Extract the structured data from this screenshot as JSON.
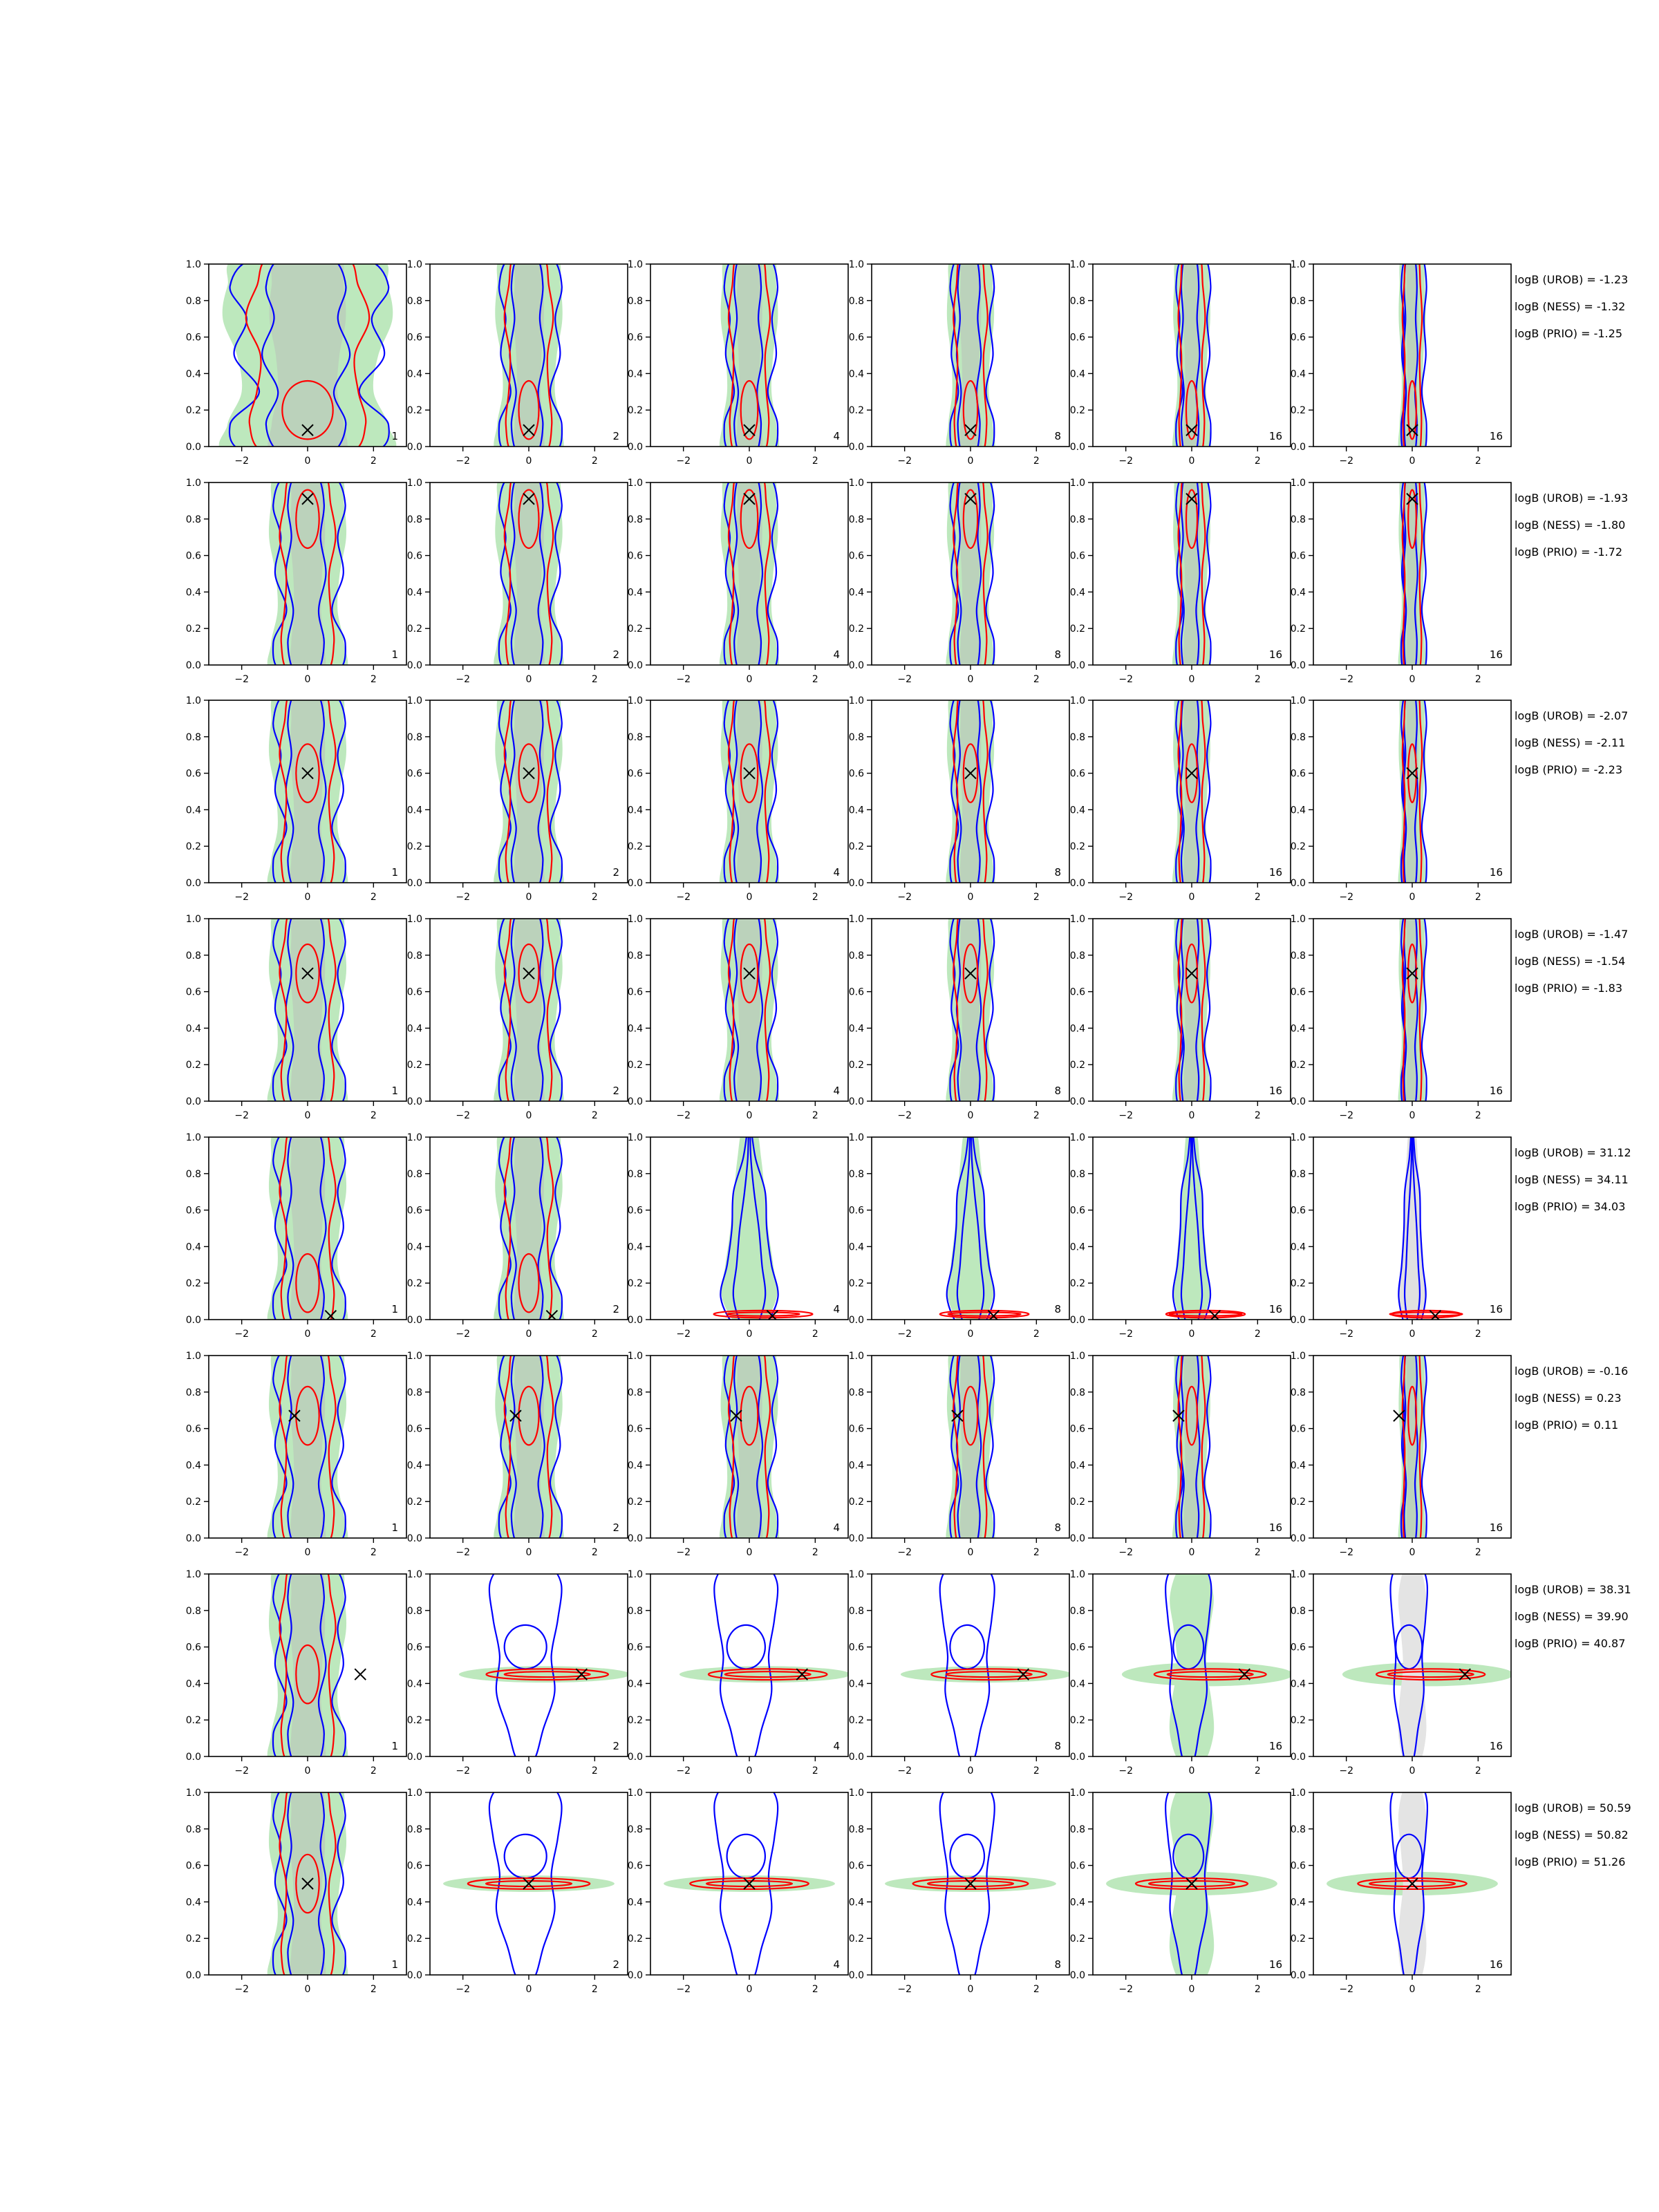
{
  "chart_data": {
    "type": "contour-grid",
    "rows": 8,
    "cols": 6,
    "xlim": [
      -3,
      3
    ],
    "ylim": [
      0,
      1
    ],
    "xticks": [
      -2,
      0,
      2
    ],
    "yticks": [
      0.0,
      0.2,
      0.4,
      0.6,
      0.8,
      1.0
    ],
    "xtick_labels": [
      "−2",
      "0",
      "2"
    ],
    "ytick_labels": [
      "0.0",
      "0.2",
      "0.4",
      "0.6",
      "0.8",
      "1.0"
    ],
    "column_labels": [
      "1",
      "2",
      "4",
      "8",
      "16",
      "16"
    ],
    "colors": {
      "green_fill": "#bde8bd",
      "grey_fill": "#b9b9b9",
      "blue": "#0000ff",
      "red": "#ff0000",
      "marker": "#000000"
    },
    "row_params": [
      {
        "x": 0.0,
        "y": 0.09,
        "shape": "wide-top"
      },
      {
        "x": 0.0,
        "y": 0.91,
        "shape": "tall"
      },
      {
        "x": 0.0,
        "y": 0.6,
        "shape": "tall"
      },
      {
        "x": 0.0,
        "y": 0.7,
        "shape": "tall"
      },
      {
        "x": 0.7,
        "y": 0.02,
        "shape": "flat-bottom"
      },
      {
        "x": -0.4,
        "y": 0.67,
        "shape": "tall"
      },
      {
        "x": 1.6,
        "y": 0.45,
        "shape": "horizontal"
      },
      {
        "x": 0.0,
        "y": 0.5,
        "shape": "horizontal"
      }
    ],
    "annotations": [
      [
        "logB (UROB) = -1.23",
        "logB (NESS) = -1.32",
        "logB (PRIO) = -1.25"
      ],
      [
        "logB (UROB) = -1.93",
        "logB (NESS) = -1.80",
        "logB (PRIO) = -1.72"
      ],
      [
        "logB (UROB) = -2.07",
        "logB (NESS) = -2.11",
        "logB (PRIO) = -2.23"
      ],
      [
        "logB (UROB) = -1.47",
        "logB (NESS) = -1.54",
        "logB (PRIO) = -1.83"
      ],
      [
        "logB (UROB) = 31.12",
        "logB (NESS) = 34.11",
        "logB (PRIO) = 34.03"
      ],
      [
        "logB (UROB) = -0.16",
        "logB (NESS) = 0.23",
        "logB (PRIO) = 0.11"
      ],
      [
        "logB (UROB) = 38.31",
        "logB (NESS) = 39.90",
        "logB (PRIO) = 40.87"
      ],
      [
        "logB (UROB) = 50.59",
        "logB (NESS) = 50.82",
        "logB (PRIO) = 51.26"
      ]
    ]
  }
}
